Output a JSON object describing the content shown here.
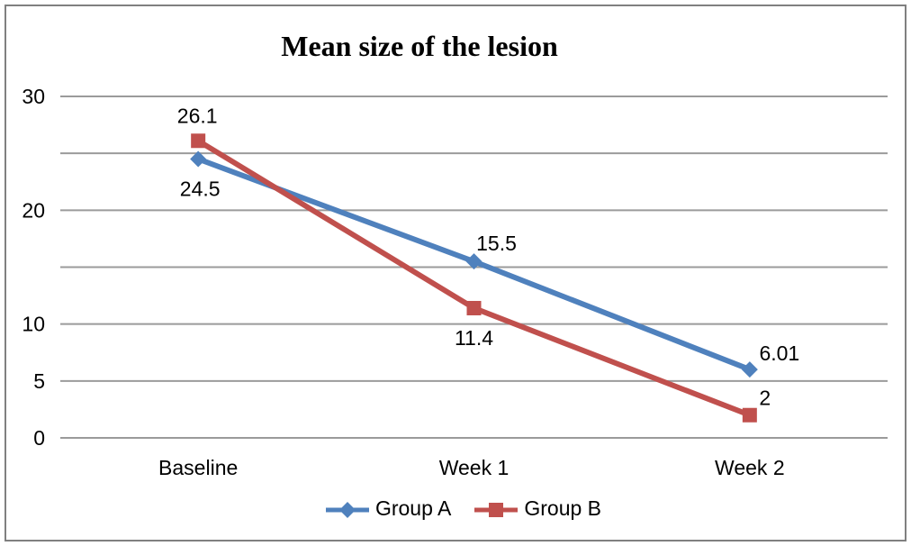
{
  "chart_data": {
    "type": "line",
    "title": "Mean size of the lesion",
    "categories": [
      "Baseline",
      "Week 1",
      "Week 2"
    ],
    "series": [
      {
        "name": "Group A",
        "marker": "diamond",
        "color": "#4F81BD",
        "values": [
          24.5,
          15.5,
          6.01
        ],
        "labels": [
          "24.5",
          "15.5",
          "6.01"
        ],
        "label_offsets": [
          [
            2,
            33
          ],
          [
            25,
            -20
          ],
          [
            33,
            -18
          ]
        ]
      },
      {
        "name": "Group B",
        "marker": "square",
        "color": "#C0504D",
        "values": [
          26.1,
          11.4,
          2
        ],
        "labels": [
          "26.1",
          "11.4",
          "2"
        ],
        "label_offsets": [
          [
            -1,
            -28
          ],
          [
            0,
            33
          ],
          [
            17,
            -19
          ]
        ]
      }
    ],
    "y_axis": {
      "min": 0,
      "max": 30,
      "gridline_step": 5,
      "tick_labels": [
        30,
        20,
        10,
        5,
        0
      ]
    },
    "grid": true,
    "legend_position": "bottom",
    "colors": {
      "gridline": "#9B9B9B",
      "frame_border": "#808080",
      "text": "#000000",
      "background": "#FFFFFF"
    }
  }
}
